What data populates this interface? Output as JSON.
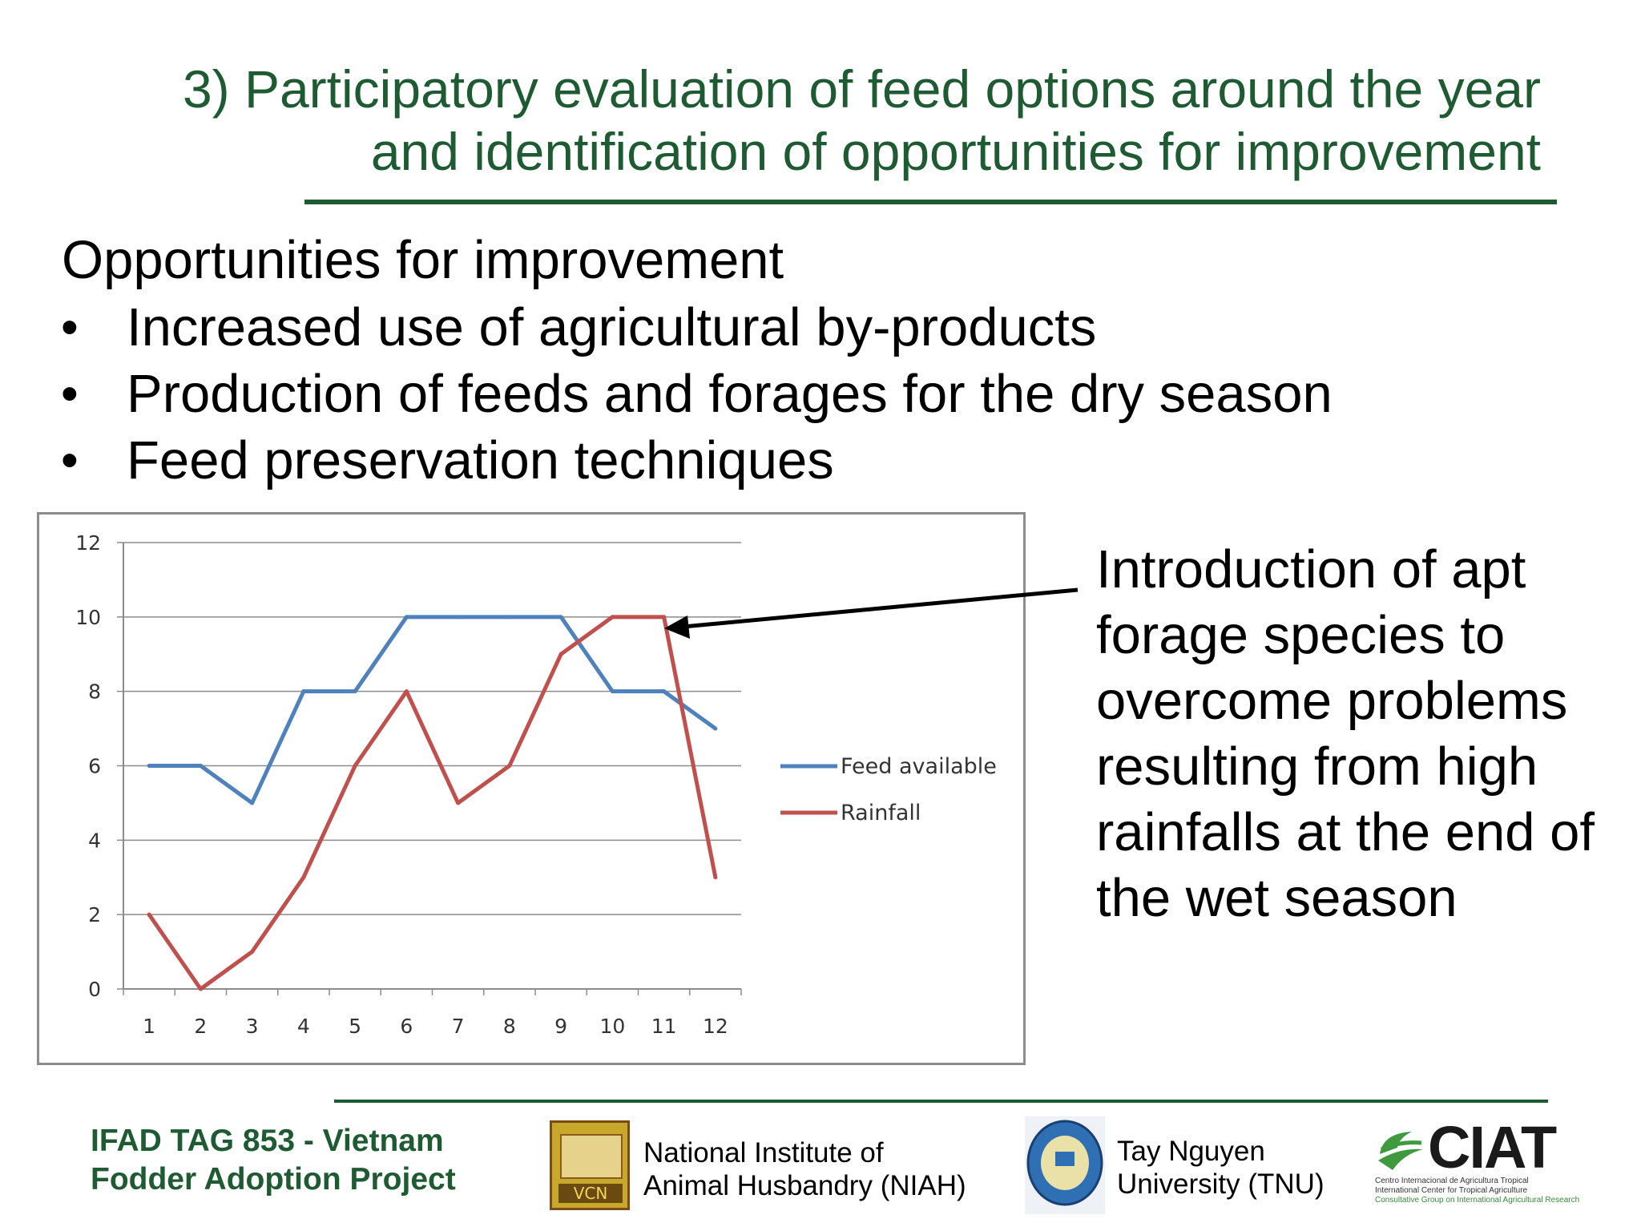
{
  "slide": {
    "title_lines": [
      "3) Participatory evaluation of feed options around the year",
      "and identification of opportunities for improvement"
    ],
    "heading": "Opportunities for improvement",
    "bullets": [
      "Increased use of agricultural by-products",
      "Production of feeds and forages for the dry season",
      "Feed preservation techniques"
    ],
    "callout_lines": [
      "Introduction of apt",
      "forage species to",
      "overcome problems",
      "resulting from high",
      "rainfalls at the end of",
      "the wet season"
    ],
    "bullet_symbol": "•"
  },
  "footer": {
    "project_lines": [
      "IFAD TAG 853 - Vietnam",
      "Fodder Adoption Project"
    ],
    "niah_lines": [
      "National Institute of",
      "Animal Husbandry (NIAH)"
    ],
    "niah_logo_text": "VCN",
    "tnu_lines": [
      "Tay Nguyen",
      "University (TNU)"
    ],
    "ciat_logo_text": "CIAT",
    "ciat_sub_lines": [
      "Centro Internacional de Agricultura Tropical",
      "International Center for Tropical Agriculture",
      "Consultative Group on International Agricultural Research"
    ]
  },
  "colors": {
    "title_green": "#1e5a32",
    "feed_series": "#4f81bd",
    "rainfall_series": "#c0504d"
  },
  "chart_data": {
    "type": "line",
    "title": "",
    "xlabel": "",
    "ylabel": "",
    "x": [
      "1",
      "2",
      "3",
      "4",
      "5",
      "6",
      "7",
      "8",
      "9",
      "10",
      "11",
      "12"
    ],
    "ylim": [
      0,
      12
    ],
    "yticks": [
      0,
      2,
      4,
      6,
      8,
      10,
      12
    ],
    "grid": true,
    "legend_position": "right",
    "series": [
      {
        "name": "Feed available",
        "color": "#4f81bd",
        "values": [
          6,
          6,
          5,
          8,
          8,
          10,
          10,
          10,
          10,
          8,
          8,
          7
        ]
      },
      {
        "name": "Rainfall",
        "color": "#c0504d",
        "values": [
          2,
          0,
          1,
          3,
          6,
          8,
          5,
          6,
          9,
          10,
          10,
          3
        ]
      }
    ]
  }
}
